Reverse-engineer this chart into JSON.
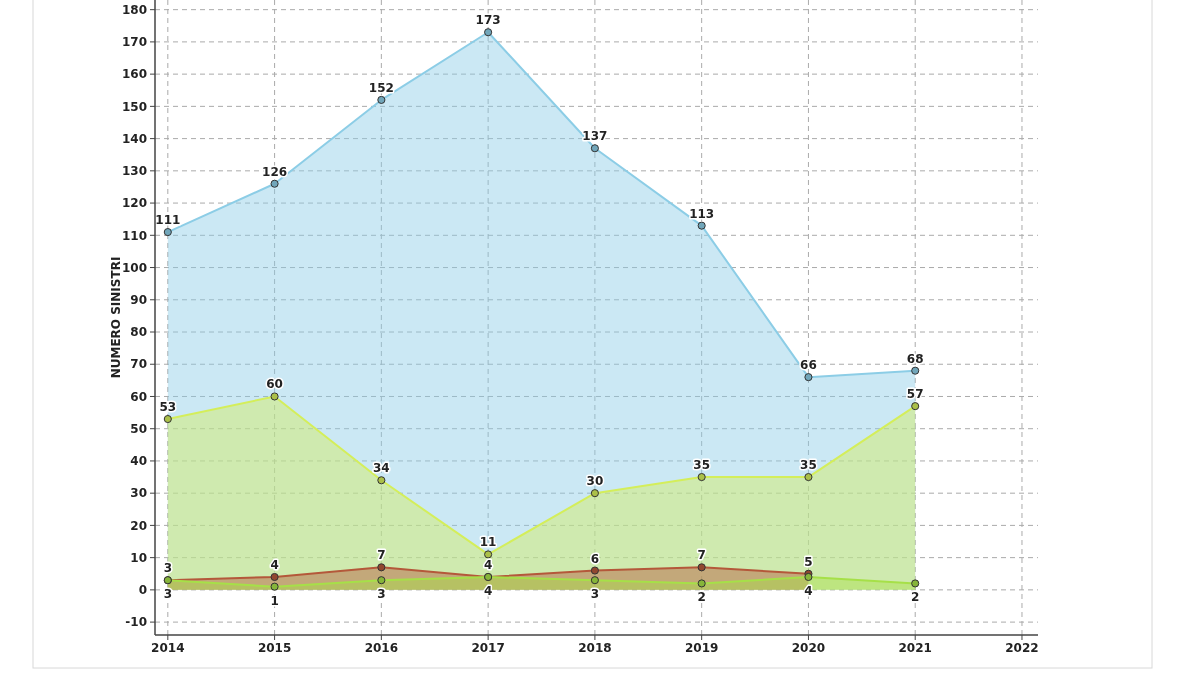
{
  "chart_data": {
    "type": "area",
    "ylabel": "NUMERO SINISTRI",
    "x": [
      2014,
      2015,
      2016,
      2017,
      2018,
      2019,
      2020,
      2021
    ],
    "xlim": [
      2013.88,
      2022.15
    ],
    "xticks": [
      2014,
      2015,
      2016,
      2017,
      2018,
      2019,
      2020,
      2021,
      2022
    ],
    "ylim": [
      -14,
      183
    ],
    "yticks": [
      -10,
      0,
      10,
      20,
      30,
      40,
      50,
      60,
      70,
      80,
      90,
      100,
      110,
      120,
      130,
      140,
      150,
      160,
      170,
      180
    ],
    "grid": true,
    "marker": "circle",
    "data_labels": true,
    "series": [
      {
        "color": "#8ccde6",
        "values": [
          111,
          126,
          152,
          173,
          137,
          113,
          66,
          68
        ]
      },
      {
        "color": "#d4ee5a",
        "values": [
          53,
          60,
          34,
          11,
          30,
          35,
          35,
          57
        ]
      },
      {
        "color": "#b4583a",
        "values": [
          3,
          4,
          7,
          4,
          6,
          7,
          5,
          null
        ]
      },
      {
        "color": "#a6e048",
        "values": [
          3,
          1,
          3,
          4,
          3,
          2,
          4,
          2
        ]
      }
    ]
  }
}
